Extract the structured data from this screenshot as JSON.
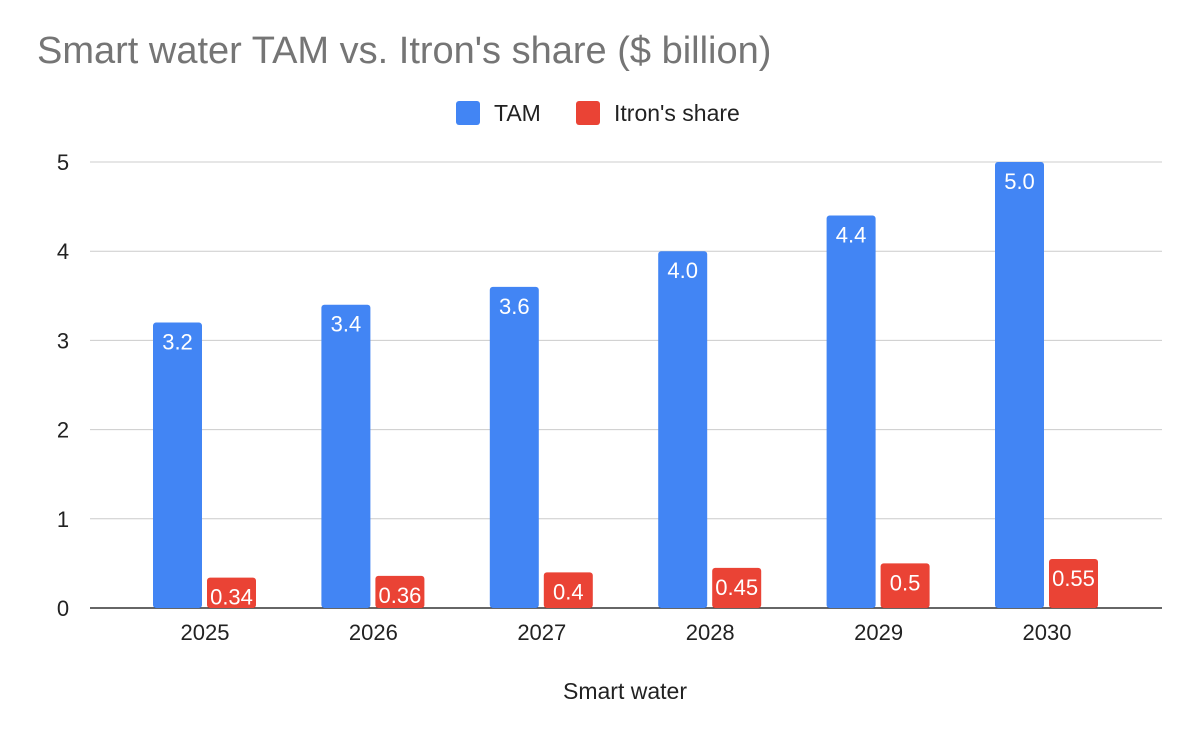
{
  "colors": {
    "tam": "#4285f4",
    "share": "#ea4335",
    "title": "#757575",
    "grid": "#cccccc",
    "axis": "#333333",
    "text": "#222222"
  },
  "chart_data": {
    "type": "bar",
    "title": "Smart water TAM vs. Itron's share ($ billion)",
    "xlabel": "Smart water",
    "ylabel": "",
    "categories": [
      "2025",
      "2026",
      "2027",
      "2028",
      "2029",
      "2030"
    ],
    "series": [
      {
        "name": "TAM",
        "values": [
          3.2,
          3.4,
          3.6,
          4.0,
          4.4,
          5.0
        ],
        "labels": [
          "3.2",
          "3.4",
          "3.6",
          "4.0",
          "4.4",
          "5.0"
        ]
      },
      {
        "name": "Itron's share",
        "values": [
          0.34,
          0.36,
          0.4,
          0.45,
          0.5,
          0.55
        ],
        "labels": [
          "0.34",
          "0.36",
          "0.4",
          "0.45",
          "0.5",
          "0.55"
        ]
      }
    ],
    "ylim": [
      0,
      5
    ],
    "yticks": [
      "0",
      "1",
      "2",
      "3",
      "4",
      "5"
    ],
    "grid": true,
    "legend": "top-center"
  }
}
